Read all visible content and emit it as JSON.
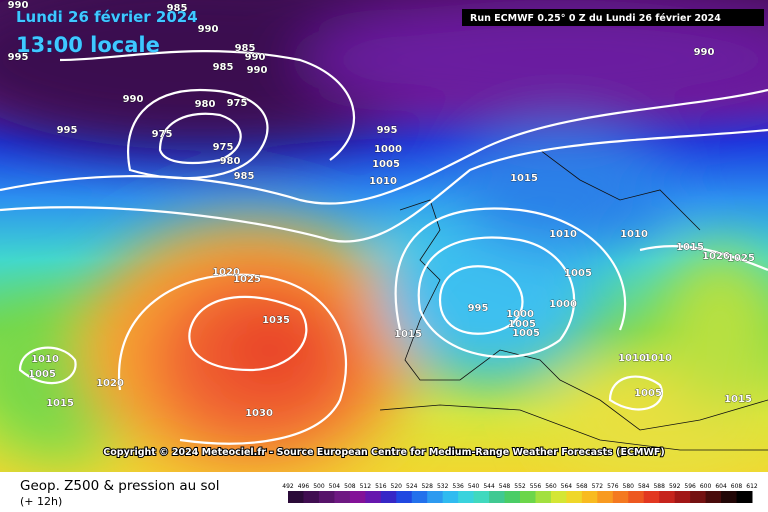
{
  "header": {
    "date": "Lundi 26 février 2024",
    "time": "13:00 locale",
    "run": "Run ECMWF 0.25° 0 Z du Lundi 26 février 2024"
  },
  "isobar_labels": [
    "990",
    "985",
    "990",
    "985",
    "990",
    "985",
    "990",
    "995",
    "990",
    "980",
    "975",
    "995",
    "975",
    "975",
    "980",
    "985",
    "995",
    "1000",
    "1005",
    "1010",
    "1015",
    "990",
    "1010",
    "1010",
    "1015",
    "1020",
    "1025",
    "1005",
    "1020",
    "1025",
    "995",
    "1000",
    "1000",
    "1005",
    "1005",
    "1015",
    "1035",
    "1010",
    "1005",
    "1020",
    "1015",
    "1010",
    "1010",
    "1005",
    "1015",
    "1030"
  ],
  "copyright": "Copyright © 2024 Meteociel.fr - Source European Centre for Medium-Range Weather Forecasts (ECMWF)",
  "footer": {
    "title": "Geop. Z500 & pression au sol",
    "lead": "(+ 12h)",
    "scale_labels": [
      "492",
      "496",
      "500",
      "504",
      "508",
      "512",
      "516",
      "520",
      "524",
      "528",
      "532",
      "536",
      "540",
      "544",
      "548",
      "552",
      "556",
      "560",
      "564",
      "568",
      "572",
      "576",
      "580",
      "584",
      "588",
      "592",
      "596",
      "600",
      "604",
      "608",
      "612"
    ]
  }
}
